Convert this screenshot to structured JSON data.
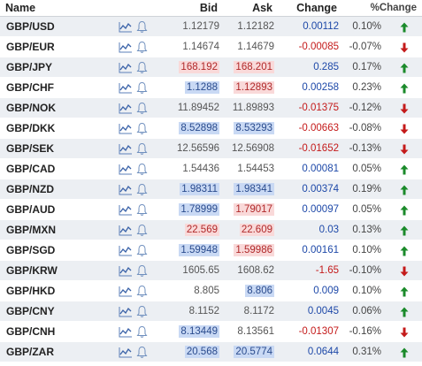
{
  "headers": {
    "name": "Name",
    "bid": "Bid",
    "ask": "Ask",
    "change": "Change",
    "pct_change": "%Change"
  },
  "colors": {
    "up_arrow": "#1a8a2a",
    "down_arrow": "#c41a1a",
    "positive_change": "#1d48a8",
    "negative_change": "#c41a1a"
  },
  "rows": [
    {
      "name": "GBP/USD",
      "bid": "1.12179",
      "ask": "1.12182",
      "change": "0.00112",
      "pct": "0.10%",
      "dir": "up",
      "bid_hl": "",
      "ask_hl": ""
    },
    {
      "name": "GBP/EUR",
      "bid": "1.14674",
      "ask": "1.14679",
      "change": "-0.00085",
      "pct": "-0.07%",
      "dir": "down",
      "bid_hl": "",
      "ask_hl": ""
    },
    {
      "name": "GBP/JPY",
      "bid": "168.192",
      "ask": "168.201",
      "change": "0.285",
      "pct": "0.17%",
      "dir": "up",
      "bid_hl": "red",
      "ask_hl": "red"
    },
    {
      "name": "GBP/CHF",
      "bid": "1.1288",
      "ask": "1.12893",
      "change": "0.00258",
      "pct": "0.23%",
      "dir": "up",
      "bid_hl": "blue",
      "ask_hl": "red"
    },
    {
      "name": "GBP/NOK",
      "bid": "11.89452",
      "ask": "11.89893",
      "change": "-0.01375",
      "pct": "-0.12%",
      "dir": "down",
      "bid_hl": "",
      "ask_hl": ""
    },
    {
      "name": "GBP/DKK",
      "bid": "8.52898",
      "ask": "8.53293",
      "change": "-0.00663",
      "pct": "-0.08%",
      "dir": "down",
      "bid_hl": "blue",
      "ask_hl": "blue"
    },
    {
      "name": "GBP/SEK",
      "bid": "12.56596",
      "ask": "12.56908",
      "change": "-0.01652",
      "pct": "-0.13%",
      "dir": "down",
      "bid_hl": "",
      "ask_hl": ""
    },
    {
      "name": "GBP/CAD",
      "bid": "1.54436",
      "ask": "1.54453",
      "change": "0.00081",
      "pct": "0.05%",
      "dir": "up",
      "bid_hl": "",
      "ask_hl": ""
    },
    {
      "name": "GBP/NZD",
      "bid": "1.98311",
      "ask": "1.98341",
      "change": "0.00374",
      "pct": "0.19%",
      "dir": "up",
      "bid_hl": "blue",
      "ask_hl": "blue"
    },
    {
      "name": "GBP/AUD",
      "bid": "1.78999",
      "ask": "1.79017",
      "change": "0.00097",
      "pct": "0.05%",
      "dir": "up",
      "bid_hl": "blue",
      "ask_hl": "red"
    },
    {
      "name": "GBP/MXN",
      "bid": "22.569",
      "ask": "22.609",
      "change": "0.03",
      "pct": "0.13%",
      "dir": "up",
      "bid_hl": "red",
      "ask_hl": "red"
    },
    {
      "name": "GBP/SGD",
      "bid": "1.59948",
      "ask": "1.59986",
      "change": "0.00161",
      "pct": "0.10%",
      "dir": "up",
      "bid_hl": "blue",
      "ask_hl": "red"
    },
    {
      "name": "GBP/KRW",
      "bid": "1605.65",
      "ask": "1608.62",
      "change": "-1.65",
      "pct": "-0.10%",
      "dir": "down",
      "bid_hl": "",
      "ask_hl": ""
    },
    {
      "name": "GBP/HKD",
      "bid": "8.805",
      "ask": "8.806",
      "change": "0.009",
      "pct": "0.10%",
      "dir": "up",
      "bid_hl": "",
      "ask_hl": "blue"
    },
    {
      "name": "GBP/CNY",
      "bid": "8.1152",
      "ask": "8.1172",
      "change": "0.0045",
      "pct": "0.06%",
      "dir": "up",
      "bid_hl": "",
      "ask_hl": ""
    },
    {
      "name": "GBP/CNH",
      "bid": "8.13449",
      "ask": "8.13561",
      "change": "-0.01307",
      "pct": "-0.16%",
      "dir": "down",
      "bid_hl": "blue",
      "ask_hl": ""
    },
    {
      "name": "GBP/ZAR",
      "bid": "20.568",
      "ask": "20.5774",
      "change": "0.0644",
      "pct": "0.31%",
      "dir": "up",
      "bid_hl": "blue",
      "ask_hl": "blue"
    }
  ]
}
